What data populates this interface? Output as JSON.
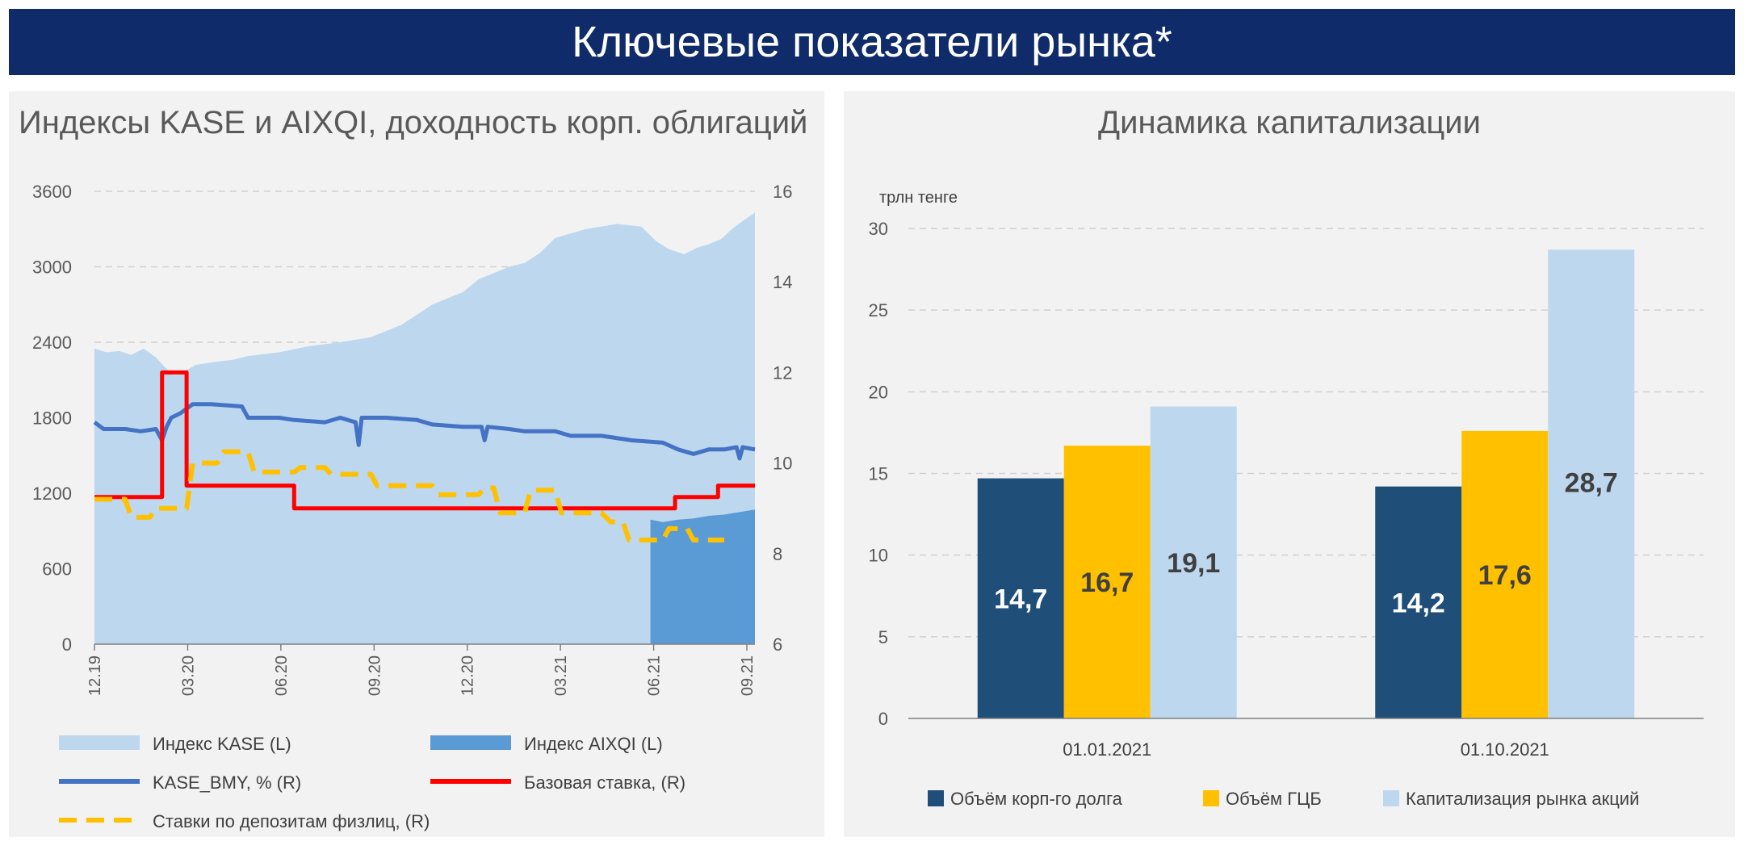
{
  "page_title": "Ключевые показатели рынка*",
  "chart_data": [
    {
      "type": "area",
      "title": "Индексы KASE и AIXQI, доходность корп. облигаций",
      "x_tick_labels": [
        "12.19",
        "03.20",
        "06.20",
        "09.20",
        "12.20",
        "03.21",
        "06.21",
        "09.21"
      ],
      "x_range": [
        0,
        21.5
      ],
      "left_axis": {
        "ticks": [
          "0",
          "600",
          "1200",
          "1800",
          "2400",
          "3000",
          "3600"
        ],
        "range": [
          0,
          3600
        ]
      },
      "right_axis": {
        "ticks": [
          "6",
          "8",
          "10",
          "12",
          "14",
          "16"
        ],
        "range": [
          6,
          16
        ]
      },
      "series": [
        {
          "name": "Индекс KASE (L)",
          "kind": "area",
          "axis": "left",
          "color": "#bdd7ee",
          "points": [
            [
              0,
              2350
            ],
            [
              0.4,
              2320
            ],
            [
              0.8,
              2330
            ],
            [
              1.2,
              2300
            ],
            [
              1.6,
              2350
            ],
            [
              2.0,
              2280
            ],
            [
              2.3,
              2200
            ],
            [
              2.6,
              2140
            ],
            [
              2.9,
              2150
            ],
            [
              3.0,
              2180
            ],
            [
              3.3,
              2220
            ],
            [
              3.8,
              2240
            ],
            [
              4.5,
              2260
            ],
            [
              5,
              2290
            ],
            [
              6,
              2320
            ],
            [
              7,
              2370
            ],
            [
              8,
              2400
            ],
            [
              9,
              2440
            ],
            [
              10,
              2540
            ],
            [
              11,
              2700
            ],
            [
              12,
              2800
            ],
            [
              12.5,
              2900
            ],
            [
              13,
              2950
            ],
            [
              13.5,
              3000
            ],
            [
              14,
              3030
            ],
            [
              14.5,
              3110
            ],
            [
              15,
              3230
            ],
            [
              16,
              3300
            ],
            [
              17,
              3340
            ],
            [
              17.8,
              3320
            ],
            [
              18.3,
              3200
            ],
            [
              18.7,
              3140
            ],
            [
              19.2,
              3100
            ],
            [
              19.6,
              3150
            ],
            [
              20,
              3180
            ],
            [
              20.4,
              3220
            ],
            [
              20.8,
              3310
            ],
            [
              21.2,
              3380
            ],
            [
              21.5,
              3430
            ]
          ]
        },
        {
          "name": "Индекс AIXQI (L)",
          "kind": "area",
          "axis": "left",
          "color": "#5b9bd5",
          "points": [
            [
              18.1,
              990
            ],
            [
              18.5,
              970
            ],
            [
              19,
              990
            ],
            [
              19.5,
              1000
            ],
            [
              20,
              1020
            ],
            [
              20.5,
              1030
            ],
            [
              21,
              1050
            ],
            [
              21.5,
              1070
            ]
          ]
        },
        {
          "name": "KASE_BMY, % (R)",
          "kind": "line",
          "axis": "right",
          "color": "#4472c4",
          "points": [
            [
              0,
              10.9
            ],
            [
              0.3,
              10.75
            ],
            [
              1,
              10.75
            ],
            [
              1.5,
              10.7
            ],
            [
              2,
              10.75
            ],
            [
              2.2,
              10.5
            ],
            [
              2.35,
              10.8
            ],
            [
              2.5,
              11.0
            ],
            [
              2.8,
              11.1
            ],
            [
              3.2,
              11.3
            ],
            [
              3.8,
              11.3
            ],
            [
              4.8,
              11.25
            ],
            [
              5,
              11.0
            ],
            [
              6,
              11.0
            ],
            [
              6.5,
              10.95
            ],
            [
              7.5,
              10.9
            ],
            [
              8,
              11.0
            ],
            [
              8.5,
              10.9
            ],
            [
              8.6,
              10.4
            ],
            [
              8.7,
              11.0
            ],
            [
              9.5,
              11.0
            ],
            [
              10.5,
              10.95
            ],
            [
              11,
              10.85
            ],
            [
              12,
              10.8
            ],
            [
              12.6,
              10.8
            ],
            [
              12.7,
              10.5
            ],
            [
              12.8,
              10.8
            ],
            [
              13.5,
              10.75
            ],
            [
              14,
              10.7
            ],
            [
              15,
              10.7
            ],
            [
              15.5,
              10.6
            ],
            [
              16.5,
              10.6
            ],
            [
              17.5,
              10.5
            ],
            [
              18.5,
              10.45
            ],
            [
              19,
              10.3
            ],
            [
              19.5,
              10.2
            ],
            [
              20,
              10.3
            ],
            [
              20.5,
              10.3
            ],
            [
              20.9,
              10.35
            ],
            [
              21,
              10.1
            ],
            [
              21.1,
              10.35
            ],
            [
              21.5,
              10.3
            ]
          ]
        },
        {
          "name": "Базовая ставка, (R)",
          "kind": "line",
          "axis": "right",
          "color": "#ff0000",
          "points": [
            [
              0,
              9.25
            ],
            [
              2.2,
              9.25
            ],
            [
              2.2,
              12.0
            ],
            [
              3.0,
              12.0
            ],
            [
              3.0,
              9.5
            ],
            [
              6.5,
              9.5
            ],
            [
              6.5,
              9.0
            ],
            [
              18.9,
              9.0
            ],
            [
              18.9,
              9.25
            ],
            [
              20.3,
              9.25
            ],
            [
              20.3,
              9.5
            ],
            [
              21.5,
              9.5
            ]
          ]
        },
        {
          "name": "Ставки по депозитам физлиц, (R)",
          "kind": "dashed",
          "axis": "right",
          "color": "#ffc000",
          "points": [
            [
              0,
              9.2
            ],
            [
              1.0,
              9.2
            ],
            [
              1.2,
              8.8
            ],
            [
              1.8,
              8.8
            ],
            [
              2.0,
              9.0
            ],
            [
              3.0,
              9.0
            ],
            [
              3.2,
              10.0
            ],
            [
              4.0,
              10.0
            ],
            [
              4.2,
              10.25
            ],
            [
              5.0,
              10.25
            ],
            [
              5.2,
              9.8
            ],
            [
              6.5,
              9.8
            ],
            [
              6.7,
              9.9
            ],
            [
              7.5,
              9.9
            ],
            [
              7.7,
              9.75
            ],
            [
              9.0,
              9.75
            ],
            [
              9.2,
              9.5
            ],
            [
              11.0,
              9.5
            ],
            [
              11.2,
              9.3
            ],
            [
              12.5,
              9.3
            ],
            [
              12.7,
              9.45
            ],
            [
              13.0,
              9.45
            ],
            [
              13.2,
              8.9
            ],
            [
              14.0,
              8.9
            ],
            [
              14.2,
              9.4
            ],
            [
              15.0,
              9.4
            ],
            [
              15.2,
              8.9
            ],
            [
              16.5,
              8.9
            ],
            [
              16.8,
              8.7
            ],
            [
              17.2,
              8.7
            ],
            [
              17.4,
              8.3
            ],
            [
              18.5,
              8.3
            ],
            [
              18.7,
              8.55
            ],
            [
              19.3,
              8.55
            ],
            [
              19.5,
              8.3
            ],
            [
              20.5,
              8.3
            ]
          ]
        }
      ],
      "legend": [
        {
          "label": "Индекс KASE (L)",
          "kind": "area",
          "color": "#bdd7ee"
        },
        {
          "label": "Индекс AIXQI (L)",
          "kind": "area",
          "color": "#5b9bd5"
        },
        {
          "label": "KASE_BMY, % (R)",
          "kind": "line",
          "color": "#4472c4"
        },
        {
          "label": "Базовая ставка, (R)",
          "kind": "line",
          "color": "#ff0000"
        },
        {
          "label": "Ставки по депозитам физлиц, (R)",
          "kind": "dashed",
          "color": "#ffc000"
        }
      ]
    },
    {
      "type": "bar",
      "title": "Динамика капитализации",
      "unit_label": "трлн тенге",
      "categories": [
        "01.01.2021",
        "01.10.2021"
      ],
      "ylim": [
        0,
        30
      ],
      "y_ticks": [
        "0",
        "5",
        "10",
        "15",
        "20",
        "25",
        "30"
      ],
      "series": [
        {
          "name": "Объём корп-го долга",
          "color": "#1f4e79",
          "values": [
            14.7,
            14.2
          ],
          "labels": [
            "14,7",
            "14,2"
          ],
          "label_color": "#ffffff"
        },
        {
          "name": "Объём ГЦБ",
          "color": "#ffc000",
          "values": [
            16.7,
            17.6
          ],
          "labels": [
            "16,7",
            "17,6"
          ],
          "label_color": "#404040"
        },
        {
          "name": "Капитализация рынка акций",
          "color": "#bdd7ee",
          "values": [
            19.1,
            28.7
          ],
          "labels": [
            "19,1",
            "28,7"
          ],
          "label_color": "#404040"
        }
      ],
      "legend": [
        {
          "label": "Объём корп-го долга",
          "color": "#1f4e79"
        },
        {
          "label": "Объём ГЦБ",
          "color": "#ffc000"
        },
        {
          "label": "Капитализация рынка акций",
          "color": "#bdd7ee"
        }
      ]
    }
  ]
}
